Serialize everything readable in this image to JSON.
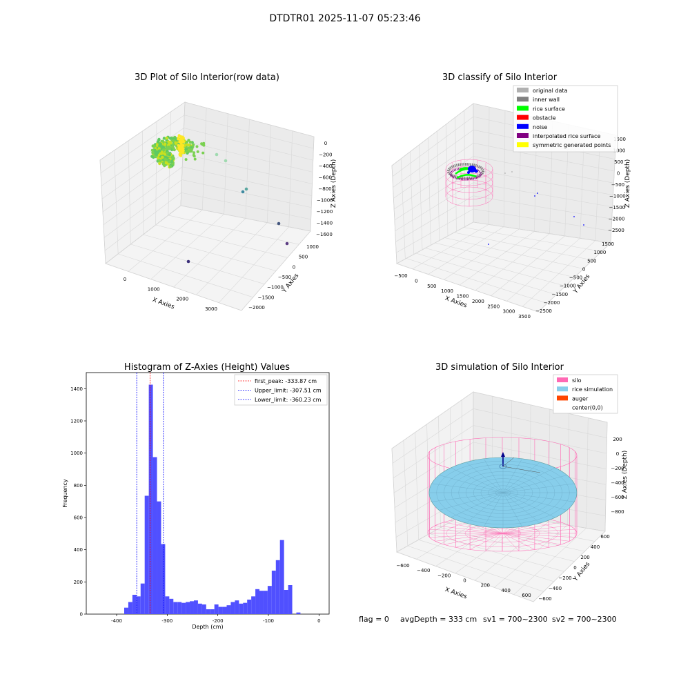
{
  "figure": {
    "suptitle": "DTDTR01 2025-11-07 05:23:46",
    "footer": {
      "flag": "flag = 0",
      "avg_depth": "avgDepth = 333 cm",
      "sv1": "sv1 = 700~2300",
      "sv2": "sv2 = 700~2300"
    }
  },
  "colors": {
    "hist_bar": "#5050ff",
    "peak_line": "#ff0000",
    "limit_line": "#0000ff",
    "silo": "#ff69b4",
    "rice_sim": "#87ceeb",
    "auger": "#ff4500",
    "rice_surface": "#00ff00",
    "noise": "#0000ff",
    "inner_wall": "#808080",
    "original": "#b0b0b0",
    "obstacle": "#ff0000",
    "interp": "#800080",
    "sym": "#ffff00"
  },
  "chart_data": [
    {
      "type": "scatter",
      "subtype": "3d",
      "title": "3D Plot of Silo Interior(row data)",
      "xlabel": "X Axies",
      "ylabel": "Y Axies",
      "zlabel": "Z Axies (Depth)",
      "x_ticks": [
        "0",
        "1000",
        "2000",
        "3000"
      ],
      "y_ticks": [
        "1000",
        "500",
        "0",
        "−500",
        "−1000",
        "−1500",
        "−2000"
      ],
      "z_ticks": [
        "0",
        "−200",
        "−400",
        "−600",
        "−800",
        "−1000",
        "−1200",
        "−1400",
        "−1600"
      ],
      "colormap": "viridis",
      "highlight_points": [
        {
          "x": 1500,
          "y": -300,
          "z": -250
        },
        {
          "x": 1800,
          "y": -500,
          "z": -350
        },
        {
          "x": 2900,
          "y": 100,
          "z": -650
        },
        {
          "x": 2950,
          "y": -200,
          "z": -700
        },
        {
          "x": 3350,
          "y": 300,
          "z": -1350
        },
        {
          "x": 3400,
          "y": 500,
          "z": -1600
        },
        {
          "x": 1900,
          "y": -1400,
          "z": -1550
        }
      ]
    },
    {
      "type": "scatter",
      "subtype": "3d",
      "title": "3D classify of Silo Interior",
      "xlabel": "X Axies",
      "ylabel": "Y Axies",
      "zlabel": "Z Axies (Depth)",
      "x_ticks": [
        "−500",
        "0",
        "500",
        "1000",
        "1500",
        "2000",
        "2500",
        "3000",
        "3500"
      ],
      "y_ticks": [
        "1500",
        "1000",
        "500",
        "0",
        "−500",
        "−1000",
        "−1500",
        "−2000",
        "−2500"
      ],
      "z_ticks": [
        "1500",
        "1000",
        "500",
        "0",
        "−500",
        "−1000",
        "−1500",
        "−2000",
        "−2500"
      ],
      "legend": [
        {
          "label": "original data",
          "color": "#b0b0b0"
        },
        {
          "label": "inner wall",
          "color": "#808080"
        },
        {
          "label": "rice surface",
          "color": "#00ff00"
        },
        {
          "label": "obstacle",
          "color": "#ff0000"
        },
        {
          "label": "noise",
          "color": "#0000ff"
        },
        {
          "label": "interpolated rice surface",
          "color": "#800080"
        },
        {
          "label": "symmetric generated points",
          "color": "#ffff00"
        }
      ],
      "legend_position": "top-right"
    },
    {
      "type": "bar",
      "subtype": "histogram",
      "title": "Histogram of Z-Axies (Height) Values",
      "xlabel": "Depth (cm)",
      "ylabel": "Frequency",
      "xlim": [
        -460,
        20
      ],
      "ylim": [
        0,
        1500
      ],
      "x_ticks": [
        -400,
        -300,
        -200,
        -100,
        0
      ],
      "y_ticks": [
        0,
        200,
        400,
        600,
        800,
        1000,
        1200,
        1400
      ],
      "bin_edges_start": -385,
      "bin_width": 8.1,
      "values": [
        40,
        75,
        120,
        110,
        190,
        735,
        1425,
        975,
        700,
        435,
        110,
        95,
        75,
        75,
        70,
        75,
        80,
        85,
        65,
        60,
        30,
        30,
        60,
        45,
        45,
        55,
        75,
        85,
        65,
        70,
        90,
        110,
        155,
        145,
        145,
        175,
        270,
        335,
        460,
        150,
        180,
        0,
        10
      ],
      "lines": [
        {
          "label": "first_peak: -333.87 cm",
          "x": -333.87,
          "color": "#ff0000"
        },
        {
          "label": "Upper_limit: -307.51 cm",
          "x": -307.51,
          "color": "#0000ff"
        },
        {
          "label": "Lower_limit: -360.23 cm",
          "x": -360.23,
          "color": "#0000ff"
        }
      ],
      "legend_position": "top-right"
    },
    {
      "type": "scatter",
      "subtype": "3d-surface",
      "title": "3D simulation of Silo Interior",
      "xlabel": "X Axies",
      "ylabel": "Y Axies",
      "zlabel": "Z Axies (Depth)",
      "x_ticks": [
        "−600",
        "−400",
        "−200",
        "0",
        "200",
        "400",
        "600"
      ],
      "y_ticks": [
        "600",
        "400",
        "200",
        "0",
        "−200",
        "−400",
        "−600"
      ],
      "z_ticks": [
        "200",
        "0",
        "−200",
        "−400",
        "−600",
        "−800"
      ],
      "legend": [
        {
          "label": "silo",
          "color": "#ff69b4"
        },
        {
          "label": "rice simulation",
          "color": "#87ceeb"
        },
        {
          "label": "auger",
          "color": "#ff4500"
        },
        {
          "label": "center(0,0)",
          "color": ""
        }
      ],
      "legend_position": "top-right"
    }
  ]
}
